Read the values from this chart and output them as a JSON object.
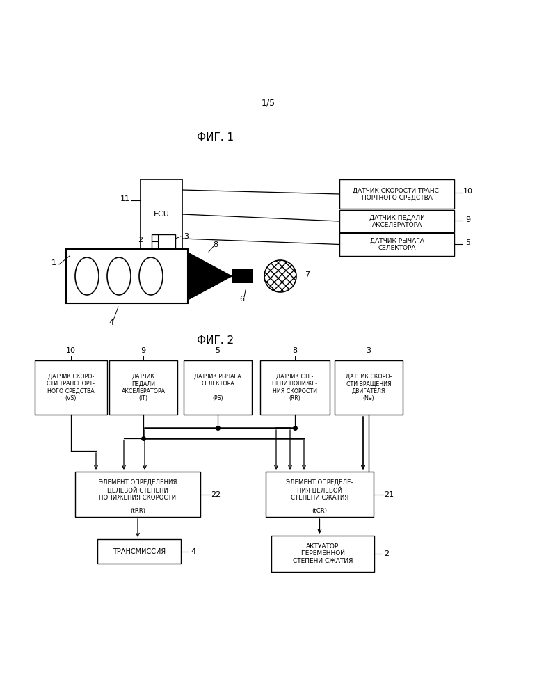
{
  "page_label": "1/5",
  "fig1_title": "ФИГ. 1",
  "fig2_title": "ФИГ. 2",
  "background_color": "#ffffff",
  "line_color": "#000000",
  "fig1": {
    "ecu_label": "ECU",
    "ecu_num": "11",
    "sensor10_label": "ДАТЧИК СКОРОСТИ ТРАНС-\nПОРТНОГО СРЕДСТВА",
    "sensor10_num": "10",
    "sensor9_label": "ДАТЧИК ПЕДАЛИ\nАКСЕЛЕРАТОРА",
    "sensor9_num": "9",
    "sensor5_label": "ДАТЧИК РЫЧАГА\nСЕЛЕКТОРА",
    "sensor5_num": "5",
    "num1": "1",
    "num2": "2",
    "num3": "3",
    "num4": "4",
    "num6": "6",
    "num7": "7",
    "num8": "8"
  },
  "fig2": {
    "s10_label": "ДАТЧИК СКОРО-\nСТИ ТРАНСПОРТ-\nНОГО СРЕДСТВА\n(VS)",
    "s10_num": "10",
    "s9_label": "ДАТЧИК\nПЕДАЛИ\nАКСЕЛЕРАТОРА\n(IT)",
    "s9_num": "9",
    "s5_label": "ДАТЧИК РЫЧАГА\nСЕЛЕКТОРА\n\n(PS)",
    "s5_num": "5",
    "s8_label": "ДАТЧИК СТЕ-\nПЕНИ ПОНИЖЕ-\nНИЯ СКОРОСТИ\n(RR)",
    "s8_num": "8",
    "s3_label": "ДАТЧИК СКОРО-\nСТИ ВРАЩЕНИЯ\nДВИГАТЕЛЯ\n(Ne)",
    "s3_num": "3",
    "b22_label": "ЭЛЕМЕНТ ОПРЕДЕЛЕНИЯ\nЦЕЛЕВОЙ СТЕПЕНИ\nПОНИЖЕНИЯ СКОРОСТИ",
    "b22_sub": "(tRR)",
    "b22_num": "22",
    "b21_label": "ЭЛЕМЕНТ ОПРЕДЕЛЕ-\nНИЯ ЦЕЛЕВОЙ\nСТЕПЕНИ СЖАТИЯ",
    "b21_sub": "(tCR)",
    "b21_num": "21",
    "trans_label": "ТРАНСМИССИЯ",
    "trans_num": "4",
    "act_label": "АКТУАТОР\nПЕРЕМЕННОЙ\nСТЕПЕНИ СЖАТИЯ",
    "act_num": "2"
  }
}
